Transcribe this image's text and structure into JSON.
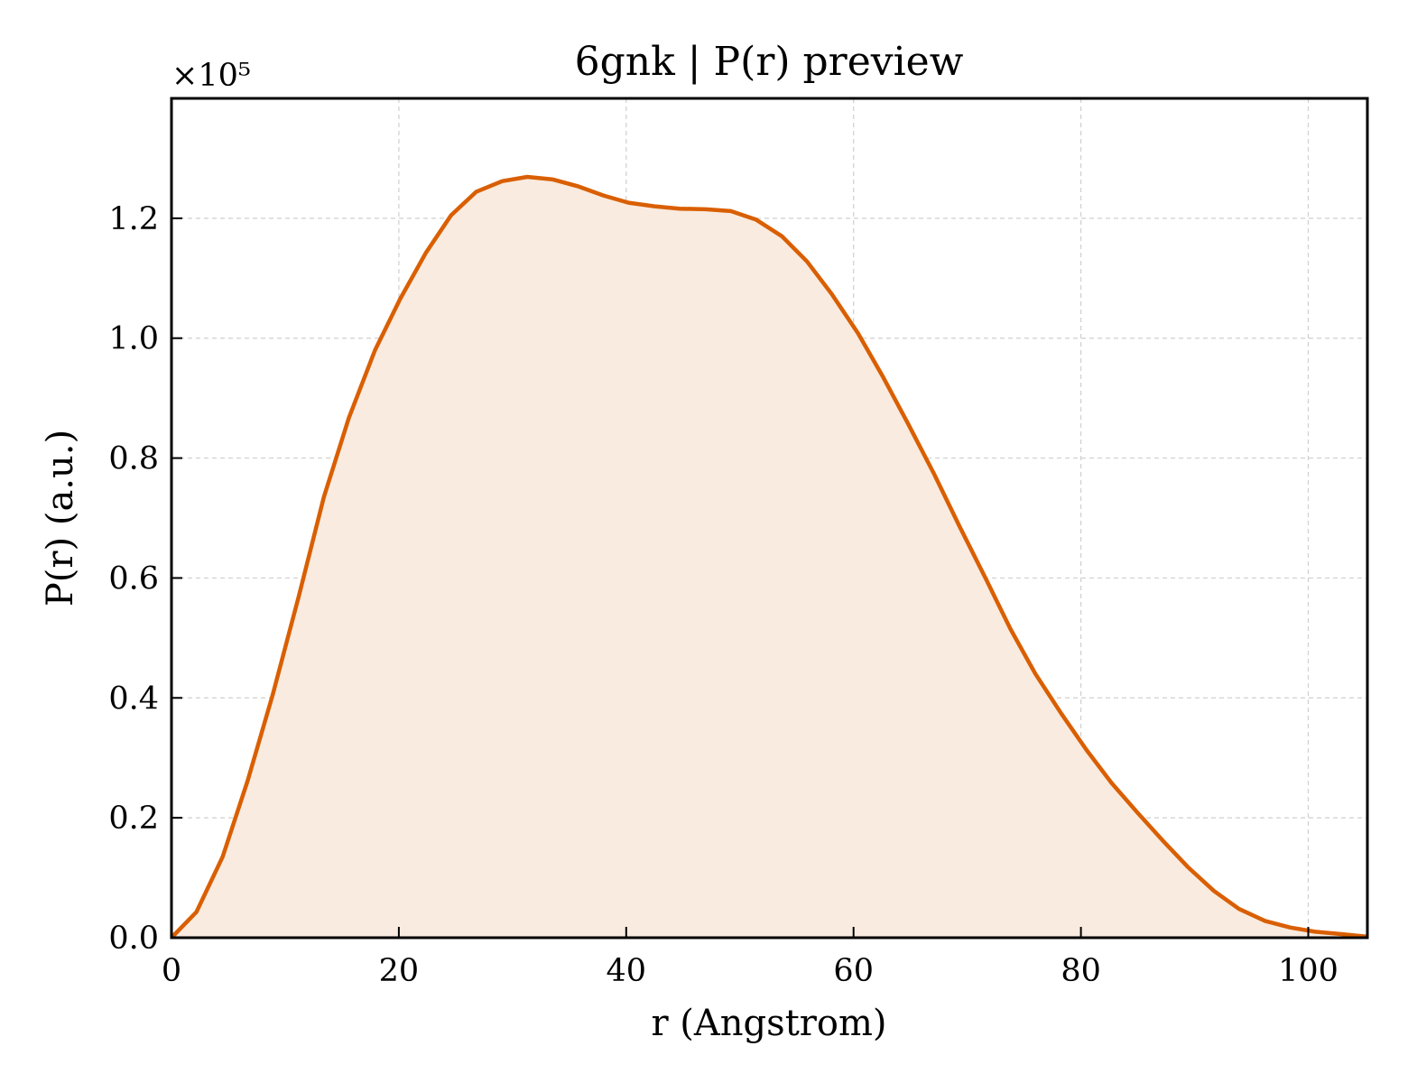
{
  "chart_data": {
    "type": "area",
    "title": "6gnk | P(r) preview",
    "xlabel": "r (Angstrom)",
    "ylabel": "P(r) (a.u.)",
    "y_offset_label": "×10⁵",
    "xlim": [
      0,
      105.2
    ],
    "ylim": [
      0,
      1.4
    ],
    "xticks": [
      0,
      20,
      40,
      60,
      80,
      100
    ],
    "yticks": [
      0.0,
      0.2,
      0.4,
      0.6,
      0.8,
      1.0,
      1.2
    ],
    "xtick_labels": [
      "0",
      "20",
      "40",
      "60",
      "80",
      "100"
    ],
    "ytick_labels": [
      "0.0",
      "0.2",
      "0.4",
      "0.6",
      "0.8",
      "1.0",
      "1.2"
    ],
    "grid": true,
    "line_color": "#d95f02",
    "fill_color": "#f9ebe0",
    "series": [
      {
        "x": [
          0,
          2.2,
          4.5,
          6.7,
          8.9,
          11.2,
          13.4,
          15.6,
          17.9,
          20.1,
          22.4,
          24.6,
          26.8,
          29.1,
          31.3,
          33.5,
          35.8,
          38.0,
          40.2,
          42.5,
          44.7,
          47.0,
          49.2,
          51.4,
          53.7,
          55.9,
          58.1,
          60.4,
          62.6,
          64.8,
          67.1,
          69.3,
          71.6,
          73.8,
          76.0,
          78.3,
          80.5,
          82.7,
          85.0,
          87.2,
          89.4,
          91.7,
          93.9,
          96.2,
          98.4,
          100.6,
          102.9,
          105.1
        ],
        "y": [
          0.0,
          0.043,
          0.135,
          0.262,
          0.405,
          0.57,
          0.735,
          0.867,
          0.98,
          1.065,
          1.143,
          1.205,
          1.244,
          1.262,
          1.269,
          1.265,
          1.253,
          1.238,
          1.226,
          1.22,
          1.216,
          1.215,
          1.212,
          1.198,
          1.17,
          1.128,
          1.073,
          1.008,
          0.935,
          0.857,
          0.773,
          0.687,
          0.6,
          0.515,
          0.44,
          0.373,
          0.313,
          0.258,
          0.208,
          0.162,
          0.118,
          0.078,
          0.048,
          0.028,
          0.017,
          0.01,
          0.006,
          0.002
        ]
      }
    ]
  }
}
